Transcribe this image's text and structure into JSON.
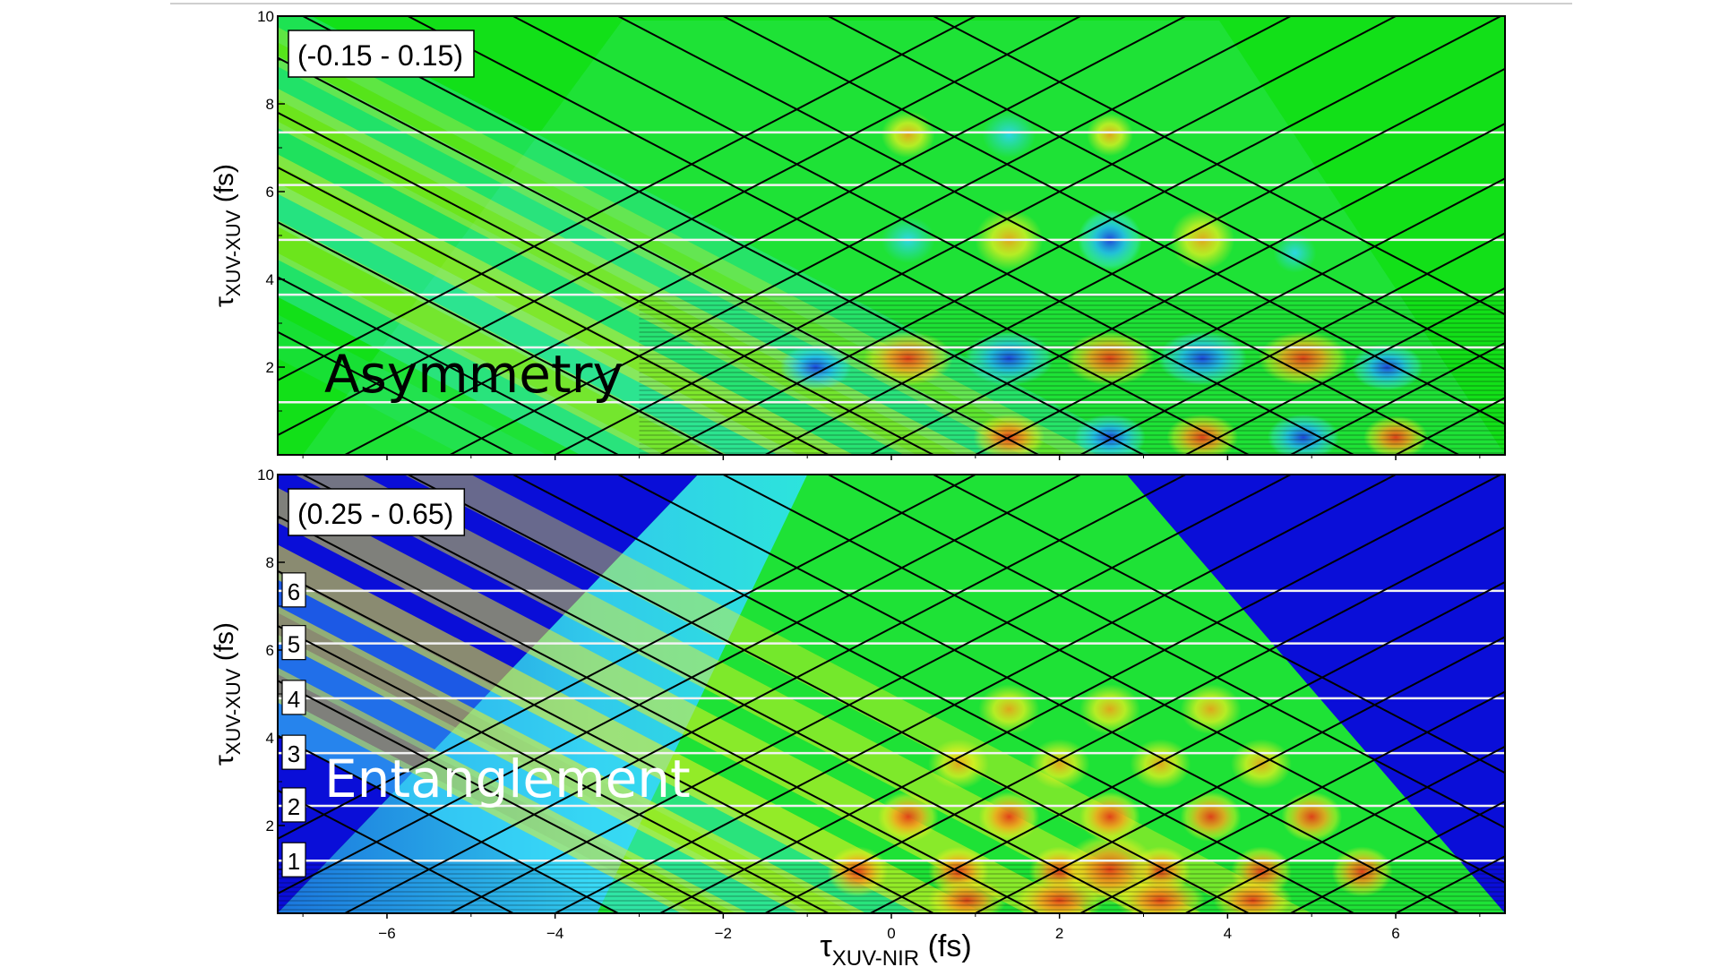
{
  "chart_data": [
    {
      "type": "heatmap",
      "title": "",
      "annotation": "Asymmetry",
      "range_label": "(-0.15 - 0.15)",
      "xlim": [
        -7.3,
        7.3
      ],
      "ylim": [
        0,
        10
      ],
      "xticks": [
        -6,
        -4,
        -2,
        0,
        2,
        4,
        6
      ],
      "xtick_labels": [],
      "yticks": [
        2,
        4,
        6,
        8,
        10
      ],
      "ytick_labels": [
        "2",
        "4",
        "6",
        "8",
        "10"
      ],
      "ylabel": {
        "symbol": "τ",
        "subscript": "XUV-XUV",
        "unit": " (fs)"
      },
      "background_color": "#12e018",
      "white_lines_y": [
        1.2,
        2.45,
        3.65,
        4.9,
        6.15,
        7.35
      ],
      "diagonal_lines_x0": [
        -4.5,
        -3.25,
        -2.0,
        -0.75,
        0.5,
        1.75,
        3.0,
        4.25,
        5.5,
        6.75,
        8.0,
        9.25,
        10.5
      ],
      "antidiagonal_lines_x0": [
        -9.0,
        -7.75,
        -6.5,
        -5.25,
        -4.0,
        -2.75,
        -1.5,
        -0.25,
        1.0,
        2.25,
        3.5,
        4.75,
        6.0
      ],
      "numbered_labels": [],
      "colors": {
        "low": "#1b2bd6",
        "mid": "#12e018",
        "high": "#e63a17"
      }
    },
    {
      "type": "heatmap",
      "title": "",
      "annotation": "Entanglement",
      "range_label": "(0.25 - 0.65)",
      "xlim": [
        -7.3,
        7.3
      ],
      "ylim": [
        0,
        10
      ],
      "xticks": [
        -6,
        -4,
        -2,
        0,
        2,
        4,
        6
      ],
      "xtick_labels": [
        "−6",
        "−4",
        "−2",
        "0",
        "2",
        "4",
        "6"
      ],
      "yticks": [
        2,
        4,
        6,
        8,
        10
      ],
      "ytick_labels": [
        "2",
        "4",
        "6",
        "8",
        "10"
      ],
      "ylabel": {
        "symbol": "τ",
        "subscript": "XUV-XUV",
        "unit": " (fs)"
      },
      "background_color": "#0a0ed8",
      "white_lines_y": [
        1.2,
        2.45,
        3.65,
        4.9,
        6.15,
        7.35
      ],
      "diagonal_lines_x0": [
        -4.5,
        -3.25,
        -2.0,
        -0.75,
        0.5,
        1.75,
        3.0,
        4.25,
        5.5,
        6.75,
        8.0,
        9.25,
        10.5
      ],
      "antidiagonal_lines_x0": [
        -9.0,
        -7.75,
        -6.5,
        -5.25,
        -4.0,
        -2.75,
        -1.5,
        -0.25,
        1.0,
        2.25,
        3.5,
        4.75,
        6.0
      ],
      "numbered_labels": [
        "1",
        "2",
        "3",
        "4",
        "5",
        "6"
      ],
      "colors": {
        "low": "#0a0ed8",
        "mid": "#12e018",
        "high": "#e63a17"
      }
    }
  ],
  "xlabel": {
    "symbol": "τ",
    "subscript": "XUV-NIR",
    "unit": " (fs)"
  }
}
